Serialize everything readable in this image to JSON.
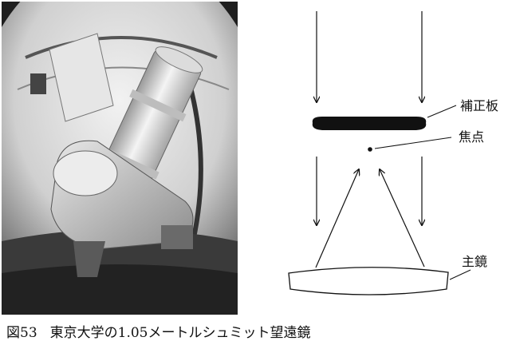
{
  "diagram": {
    "corrector_plate_label": "補正板",
    "focus_label": "焦点",
    "primary_mirror_label": "主鏡"
  },
  "caption": {
    "figure_number": "図53",
    "text": "東京大学の1.05メートルシュミット望遠鏡"
  }
}
